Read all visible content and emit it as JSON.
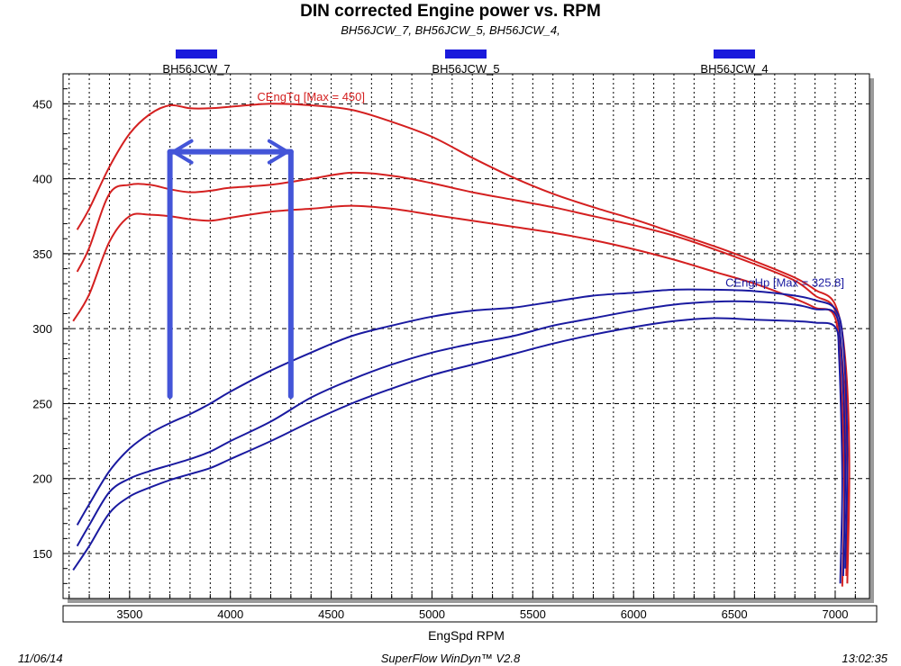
{
  "title": "DIN corrected Engine power vs. RPM",
  "subtitle": "BH56JCW_7, BH56JCW_5, BH56JCW_4,",
  "footer": {
    "date": "11/06/14",
    "software": "SuperFlow WinDyn™ V2.8",
    "time": "13:02:35"
  },
  "colors": {
    "torque": "#d42020",
    "power": "#1a1aa0",
    "annotation": "#4455d8",
    "legend_swatch": "#1a1adc",
    "grid": "#000000"
  },
  "chart_data": {
    "type": "line",
    "xlabel": "EngSpd RPM",
    "ylabel": "",
    "xlim": [
      3170,
      7170
    ],
    "ylim": [
      120,
      470
    ],
    "x_ticks": [
      3500,
      4000,
      4500,
      5000,
      5500,
      6000,
      6500,
      7000
    ],
    "y_ticks": [
      150,
      200,
      250,
      300,
      350,
      400,
      450
    ],
    "grid": true,
    "legend": {
      "position": "top",
      "entries": [
        "BH56JCW_7",
        "BH56JCW_5",
        "BH56JCW_4"
      ]
    },
    "annotations": [
      {
        "text": "CEngTq [Max = 450]",
        "x": 4400,
        "y": 452,
        "color": "torque"
      },
      {
        "text": "CEngHp [Max = 325.8]",
        "x": 6750,
        "y": 328,
        "color": "power"
      }
    ],
    "series": [
      {
        "name": "BH56JCW_7",
        "quantity": "CEngTq",
        "color": "torque",
        "points": [
          [
            3240,
            366
          ],
          [
            3300,
            380
          ],
          [
            3400,
            408
          ],
          [
            3500,
            430
          ],
          [
            3600,
            443
          ],
          [
            3700,
            449
          ],
          [
            3800,
            447
          ],
          [
            3900,
            447
          ],
          [
            4000,
            448
          ],
          [
            4200,
            450
          ],
          [
            4400,
            449
          ],
          [
            4600,
            446
          ],
          [
            4800,
            438
          ],
          [
            5000,
            428
          ],
          [
            5200,
            414
          ],
          [
            5400,
            401
          ],
          [
            5600,
            390
          ],
          [
            5800,
            381
          ],
          [
            6000,
            373
          ],
          [
            6200,
            364
          ],
          [
            6400,
            355
          ],
          [
            6600,
            345
          ],
          [
            6800,
            334
          ],
          [
            6900,
            326
          ],
          [
            7000,
            316
          ],
          [
            7050,
            280
          ],
          [
            7070,
            210
          ],
          [
            7060,
            130
          ]
        ]
      },
      {
        "name": "BH56JCW_5",
        "quantity": "CEngTq",
        "color": "torque",
        "points": [
          [
            3240,
            338
          ],
          [
            3300,
            354
          ],
          [
            3400,
            390
          ],
          [
            3500,
            396
          ],
          [
            3600,
            396
          ],
          [
            3700,
            393
          ],
          [
            3800,
            391
          ],
          [
            3900,
            392
          ],
          [
            4000,
            394
          ],
          [
            4200,
            396
          ],
          [
            4400,
            400
          ],
          [
            4600,
            404
          ],
          [
            4800,
            402
          ],
          [
            5000,
            397
          ],
          [
            5200,
            391
          ],
          [
            5400,
            386
          ],
          [
            5600,
            381
          ],
          [
            5800,
            375
          ],
          [
            6000,
            369
          ],
          [
            6200,
            362
          ],
          [
            6400,
            353
          ],
          [
            6600,
            343
          ],
          [
            6800,
            332
          ],
          [
            6900,
            322
          ],
          [
            7000,
            312
          ],
          [
            7040,
            270
          ],
          [
            7060,
            200
          ],
          [
            7055,
            135
          ]
        ]
      },
      {
        "name": "BH56JCW_4",
        "quantity": "CEngTq",
        "color": "torque",
        "points": [
          [
            3220,
            305
          ],
          [
            3300,
            323
          ],
          [
            3400,
            358
          ],
          [
            3500,
            375
          ],
          [
            3600,
            376
          ],
          [
            3700,
            375
          ],
          [
            3800,
            373
          ],
          [
            3900,
            372
          ],
          [
            4000,
            374
          ],
          [
            4200,
            378
          ],
          [
            4400,
            380
          ],
          [
            4600,
            382
          ],
          [
            4800,
            380
          ],
          [
            5000,
            376
          ],
          [
            5200,
            372
          ],
          [
            5400,
            368
          ],
          [
            5600,
            364
          ],
          [
            5800,
            359
          ],
          [
            6000,
            353
          ],
          [
            6200,
            346
          ],
          [
            6400,
            338
          ],
          [
            6600,
            330
          ],
          [
            6800,
            320
          ],
          [
            6900,
            314
          ],
          [
            7000,
            307
          ],
          [
            7030,
            260
          ],
          [
            7045,
            190
          ],
          [
            7035,
            128
          ]
        ]
      },
      {
        "name": "BH56JCW_7",
        "quantity": "CEngHp",
        "color": "power",
        "points": [
          [
            3240,
            169
          ],
          [
            3300,
            183
          ],
          [
            3400,
            205
          ],
          [
            3500,
            220
          ],
          [
            3600,
            230
          ],
          [
            3700,
            237
          ],
          [
            3800,
            243
          ],
          [
            3900,
            250
          ],
          [
            4000,
            258
          ],
          [
            4200,
            272
          ],
          [
            4400,
            284
          ],
          [
            4600,
            295
          ],
          [
            4800,
            302
          ],
          [
            5000,
            308
          ],
          [
            5200,
            312
          ],
          [
            5400,
            314
          ],
          [
            5600,
            318
          ],
          [
            5800,
            322
          ],
          [
            6000,
            324
          ],
          [
            6200,
            326
          ],
          [
            6400,
            326
          ],
          [
            6600,
            325
          ],
          [
            6800,
            322
          ],
          [
            6900,
            319
          ],
          [
            7000,
            313
          ],
          [
            7040,
            290
          ],
          [
            7060,
            220
          ],
          [
            7050,
            140
          ]
        ]
      },
      {
        "name": "BH56JCW_5",
        "quantity": "CEngHp",
        "color": "power",
        "points": [
          [
            3240,
            155
          ],
          [
            3300,
            169
          ],
          [
            3400,
            191
          ],
          [
            3500,
            200
          ],
          [
            3600,
            205
          ],
          [
            3700,
            209
          ],
          [
            3800,
            213
          ],
          [
            3900,
            218
          ],
          [
            4000,
            225
          ],
          [
            4200,
            238
          ],
          [
            4400,
            254
          ],
          [
            4600,
            266
          ],
          [
            4800,
            276
          ],
          [
            5000,
            284
          ],
          [
            5200,
            290
          ],
          [
            5400,
            295
          ],
          [
            5600,
            302
          ],
          [
            5800,
            307
          ],
          [
            6000,
            312
          ],
          [
            6200,
            316
          ],
          [
            6400,
            318
          ],
          [
            6600,
            318
          ],
          [
            6800,
            316
          ],
          [
            6900,
            313
          ],
          [
            7000,
            310
          ],
          [
            7030,
            285
          ],
          [
            7050,
            210
          ],
          [
            7040,
            135
          ]
        ]
      },
      {
        "name": "BH56JCW_4",
        "quantity": "CEngHp",
        "color": "power",
        "points": [
          [
            3220,
            139
          ],
          [
            3300,
            155
          ],
          [
            3400,
            177
          ],
          [
            3500,
            188
          ],
          [
            3600,
            194
          ],
          [
            3700,
            199
          ],
          [
            3800,
            203
          ],
          [
            3900,
            207
          ],
          [
            4000,
            213
          ],
          [
            4200,
            225
          ],
          [
            4400,
            238
          ],
          [
            4600,
            250
          ],
          [
            4800,
            260
          ],
          [
            5000,
            269
          ],
          [
            5200,
            276
          ],
          [
            5400,
            283
          ],
          [
            5600,
            290
          ],
          [
            5800,
            296
          ],
          [
            6000,
            301
          ],
          [
            6200,
            305
          ],
          [
            6400,
            307
          ],
          [
            6600,
            306
          ],
          [
            6800,
            305
          ],
          [
            6900,
            304
          ],
          [
            7000,
            301
          ],
          [
            7020,
            280
          ],
          [
            7035,
            200
          ],
          [
            7025,
            130
          ]
        ]
      }
    ],
    "markers": [
      {
        "type": "range_arrow",
        "x1": 3700,
        "x2": 4300,
        "y": 418,
        "bottom": 255,
        "color": "annotation"
      }
    ]
  }
}
